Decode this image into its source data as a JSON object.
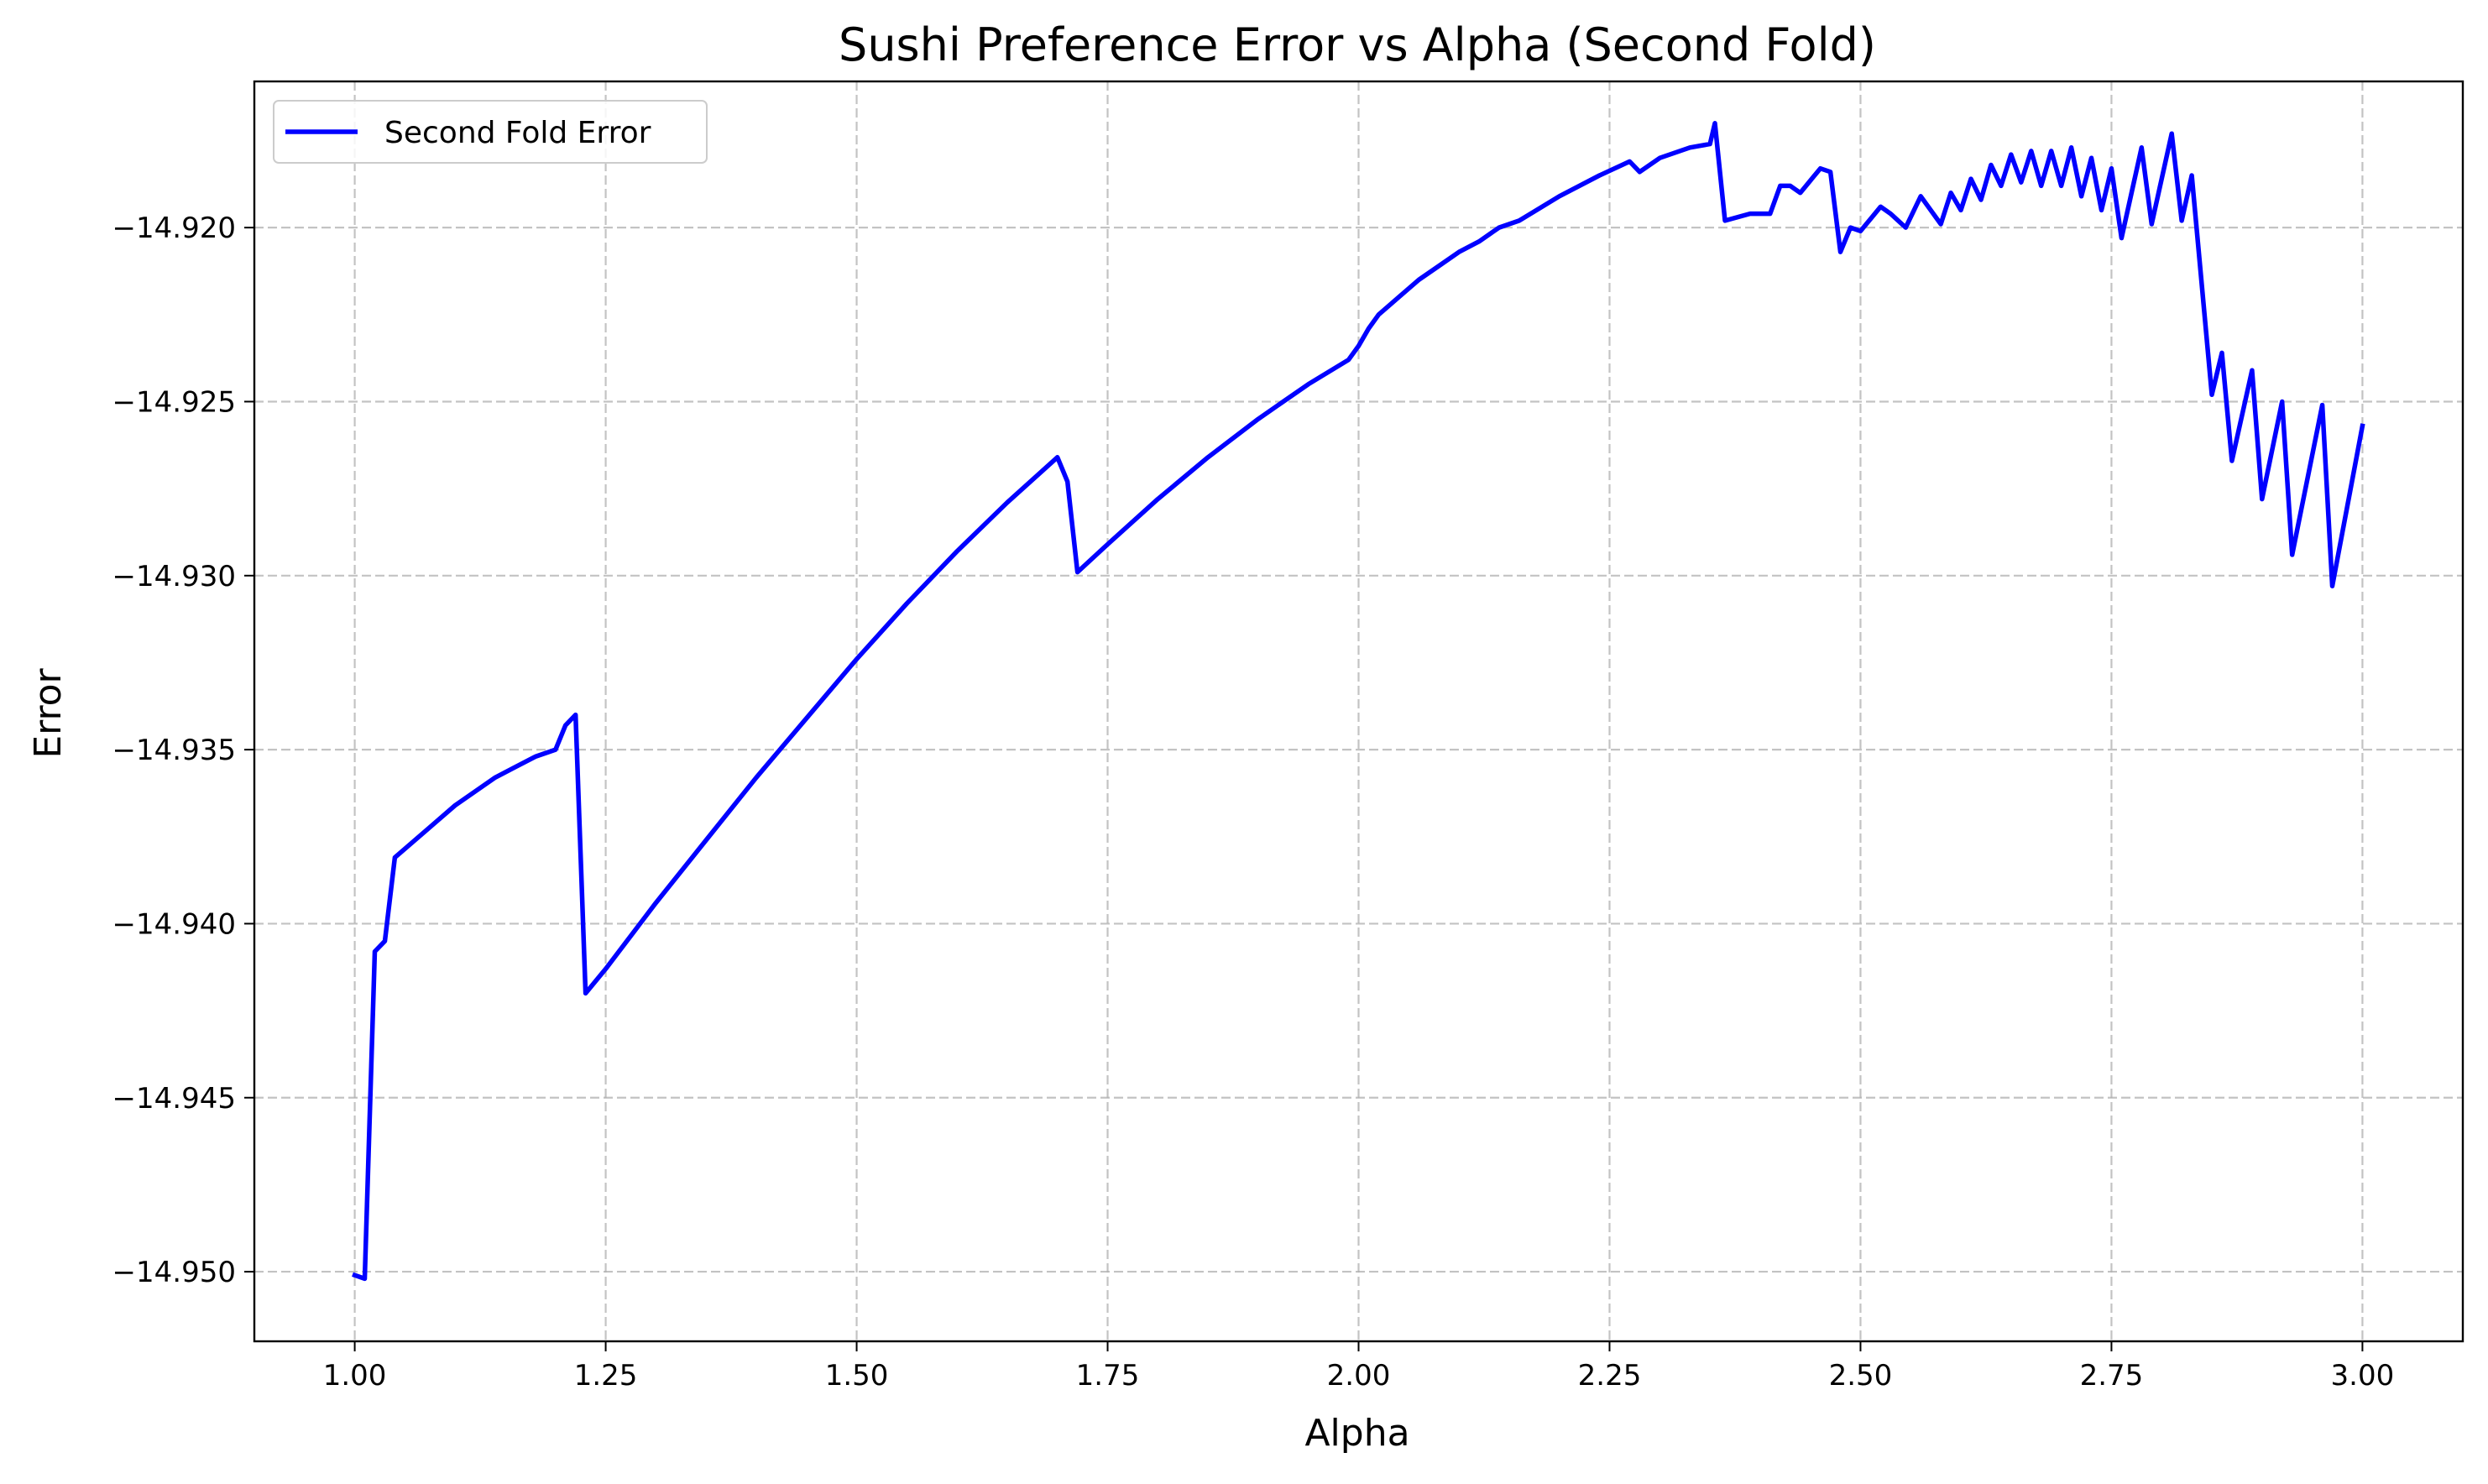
{
  "chart_data": {
    "type": "line",
    "title": "Sushi Preference Error vs Alpha (Second Fold)",
    "xlabel": "Alpha",
    "ylabel": "Error",
    "xlim": [
      0.9,
      3.1
    ],
    "ylim": [
      -14.952,
      -14.9158
    ],
    "grid": true,
    "legend_position": "top-left",
    "colors": {
      "line": "#0000ff",
      "grid": "#b0b0b0",
      "axes": "#000000"
    },
    "x_ticks": [
      1.0,
      1.25,
      1.5,
      1.75,
      2.0,
      2.25,
      2.5,
      2.75,
      3.0
    ],
    "x_tick_labels": [
      "1.00",
      "1.25",
      "1.50",
      "1.75",
      "2.00",
      "2.25",
      "2.50",
      "2.75",
      "3.00"
    ],
    "y_ticks": [
      -14.95,
      -14.945,
      -14.94,
      -14.935,
      -14.93,
      -14.925,
      -14.92
    ],
    "y_tick_labels": [
      "−14.950",
      "−14.945",
      "−14.940",
      "−14.935",
      "−14.930",
      "−14.925",
      "−14.920"
    ],
    "series": [
      {
        "name": "Second Fold Error",
        "color": "#0000ff",
        "x": [
          1.0,
          1.01,
          1.02,
          1.03,
          1.04,
          1.06,
          1.08,
          1.1,
          1.12,
          1.14,
          1.16,
          1.18,
          1.2,
          1.21,
          1.22,
          1.23,
          1.25,
          1.3,
          1.35,
          1.4,
          1.45,
          1.5,
          1.55,
          1.6,
          1.65,
          1.7,
          1.71,
          1.72,
          1.75,
          1.8,
          1.85,
          1.9,
          1.95,
          1.99,
          2.0,
          2.01,
          2.02,
          2.04,
          2.06,
          2.08,
          2.1,
          2.12,
          2.14,
          2.16,
          2.2,
          2.24,
          2.27,
          2.28,
          2.3,
          2.33,
          2.35,
          2.355,
          2.365,
          2.39,
          2.41,
          2.42,
          2.43,
          2.44,
          2.46,
          2.47,
          2.48,
          2.49,
          2.5,
          2.52,
          2.53,
          2.545,
          2.56,
          2.58,
          2.59,
          2.6,
          2.61,
          2.62,
          2.63,
          2.64,
          2.65,
          2.66,
          2.67,
          2.68,
          2.69,
          2.7,
          2.71,
          2.72,
          2.73,
          2.74,
          2.75,
          2.76,
          2.78,
          2.79,
          2.81,
          2.82,
          2.83,
          2.85,
          2.86,
          2.87,
          2.89,
          2.9,
          2.92,
          2.93,
          2.96,
          2.97,
          3.0
        ],
        "values": [
          -14.9501,
          -14.9502,
          -14.9408,
          -14.9405,
          -14.9381,
          -14.9376,
          -14.9371,
          -14.9366,
          -14.9362,
          -14.9358,
          -14.9355,
          -14.9352,
          -14.935,
          -14.9343,
          -14.934,
          -14.942,
          -14.9413,
          -14.9394,
          -14.9376,
          -14.9358,
          -14.9341,
          -14.9324,
          -14.9308,
          -14.9293,
          -14.9279,
          -14.9266,
          -14.9273,
          -14.9299,
          -14.9291,
          -14.9278,
          -14.9266,
          -14.9255,
          -14.9245,
          -14.9238,
          -14.9234,
          -14.9229,
          -14.9225,
          -14.922,
          -14.9215,
          -14.9211,
          -14.9207,
          -14.9204,
          -14.92,
          -14.9198,
          -14.9191,
          -14.9185,
          -14.9181,
          -14.9184,
          -14.918,
          -14.9177,
          -14.9176,
          -14.917,
          -14.9198,
          -14.9196,
          -14.9196,
          -14.9188,
          -14.9188,
          -14.919,
          -14.9183,
          -14.9184,
          -14.9207,
          -14.92,
          -14.9201,
          -14.9194,
          -14.9196,
          -14.92,
          -14.9191,
          -14.9199,
          -14.919,
          -14.9195,
          -14.9186,
          -14.9192,
          -14.9182,
          -14.9188,
          -14.9179,
          -14.9187,
          -14.9178,
          -14.9188,
          -14.9178,
          -14.9188,
          -14.9177,
          -14.9191,
          -14.918,
          -14.9195,
          -14.9183,
          -14.9203,
          -14.9177,
          -14.9199,
          -14.9173,
          -14.9198,
          -14.9185,
          -14.9248,
          -14.9236,
          -14.9267,
          -14.9241,
          -14.9278,
          -14.925,
          -14.9294,
          -14.9251,
          -14.9303,
          -14.9257
        ]
      }
    ]
  }
}
